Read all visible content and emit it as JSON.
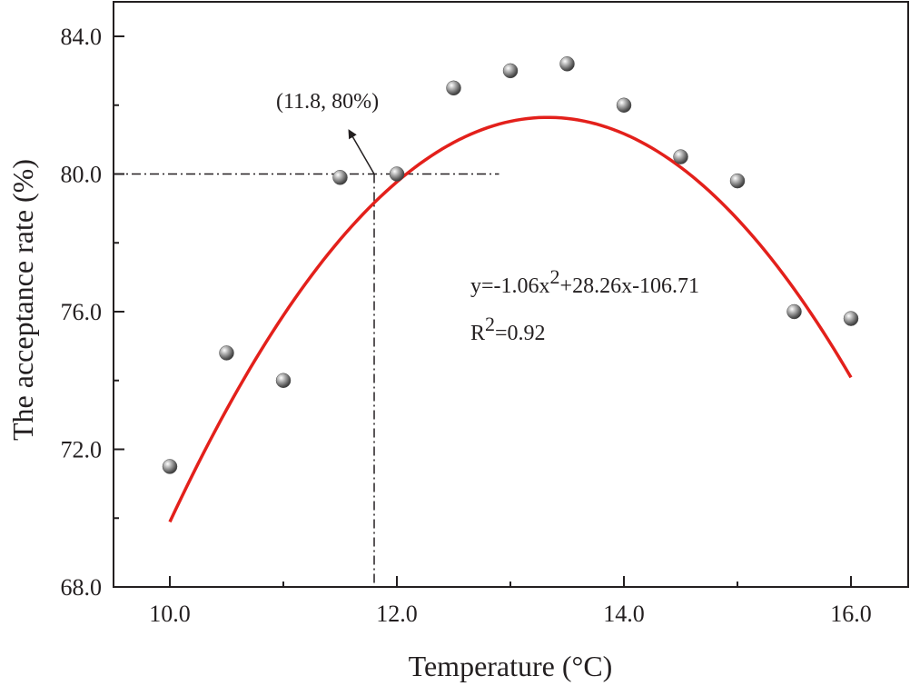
{
  "chart_data": {
    "type": "scatter",
    "xlabel": "Temperature (°C)",
    "ylabel": "The acceptance rate (%)",
    "xlim": [
      9.5,
      16.5
    ],
    "ylim": [
      68.0,
      85.0
    ],
    "x_ticks": [
      10.0,
      12.0,
      14.0,
      16.0
    ],
    "x_tick_labels": [
      "10.0",
      "12.0",
      "14.0",
      "16.0"
    ],
    "y_ticks": [
      68.0,
      72.0,
      76.0,
      80.0,
      84.0
    ],
    "y_tick_labels": [
      "68.0",
      "72.0",
      "76.0",
      "80.0",
      "84.0"
    ],
    "grid": false,
    "series": [
      {
        "x": [
          10.0,
          10.5,
          11.0,
          11.5,
          12.0,
          12.5,
          13.0,
          13.5,
          14.0,
          14.5,
          15.0,
          15.5,
          16.0
        ],
        "y": [
          71.5,
          74.8,
          74.0,
          79.9,
          80.0,
          82.5,
          83.0,
          83.2,
          82.0,
          80.5,
          79.8,
          76.0,
          75.8
        ],
        "color": "#7a7a7a"
      }
    ],
    "fit": {
      "type": "quadratic",
      "coefficients": {
        "a": -1.06,
        "b": 28.26,
        "c": -106.71
      },
      "x_range": [
        10.0,
        16.0
      ],
      "color": "#e3201b",
      "equation_text_prefix": "y=-1.06x",
      "equation_superscript": "2",
      "equation_text_suffix": "+28.26x-106.71",
      "r2_prefix": "R",
      "r2_superscript": "2",
      "r2_suffix": "=0.92"
    },
    "reference_point": {
      "x": 11.8,
      "y": 80.0,
      "label": "(11.8, 80%)",
      "horizontal_line_x_end": 12.9
    }
  }
}
